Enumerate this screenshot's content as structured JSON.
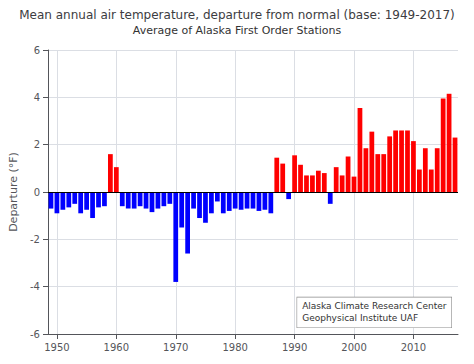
{
  "chart_data": {
    "type": "bar",
    "title": "Mean annual air temperature, departure from normal (base: 1949-2017)",
    "subtitle": "Average of Alaska First Order Stations",
    "ylabel": "Departure (°F)",
    "annotation": "Alaska Climate Research Center\nGeophysical Institute UAF",
    "x": [
      1949,
      1950,
      1951,
      1952,
      1953,
      1954,
      1955,
      1956,
      1957,
      1958,
      1959,
      1960,
      1961,
      1962,
      1963,
      1964,
      1965,
      1966,
      1967,
      1968,
      1969,
      1970,
      1971,
      1972,
      1973,
      1974,
      1975,
      1976,
      1977,
      1978,
      1979,
      1980,
      1981,
      1982,
      1983,
      1984,
      1985,
      1986,
      1987,
      1988,
      1989,
      1990,
      1991,
      1992,
      1993,
      1994,
      1995,
      1996,
      1997,
      1998,
      1999,
      2000,
      2001,
      2002,
      2003,
      2004,
      2005,
      2006,
      2007,
      2008,
      2009,
      2010,
      2011,
      2012,
      2013,
      2014,
      2015,
      2016,
      2017
    ],
    "values": [
      -0.7,
      -0.9,
      -0.75,
      -0.65,
      -0.5,
      -0.9,
      -0.75,
      -1.1,
      -0.65,
      -0.6,
      1.6,
      1.05,
      -0.6,
      -0.7,
      -0.7,
      -0.6,
      -0.7,
      -0.85,
      -0.7,
      -0.6,
      -0.5,
      -3.8,
      -1.5,
      -2.6,
      -0.7,
      -1.1,
      -1.3,
      -0.9,
      -0.4,
      -0.9,
      -0.8,
      -0.7,
      -0.75,
      -0.7,
      -0.7,
      -0.8,
      -0.75,
      -0.9,
      1.45,
      1.2,
      -0.3,
      1.55,
      1.15,
      0.7,
      0.7,
      0.9,
      0.8,
      -0.5,
      1.05,
      0.7,
      1.5,
      0.65,
      3.55,
      1.85,
      2.55,
      1.6,
      1.6,
      2.35,
      2.6,
      2.6,
      2.6,
      2.15,
      0.95,
      1.85,
      0.95,
      1.85,
      3.95,
      4.15,
      2.3
    ],
    "colors": [
      "#0000ff",
      "#0000ff",
      "#0000ff",
      "#0000ff",
      "#0000ff",
      "#0000ff",
      "#0000ff",
      "#0000ff",
      "#0000ff",
      "#0000ff",
      "#ff0000",
      "#ff0000",
      "#0000ff",
      "#0000ff",
      "#0000ff",
      "#0000ff",
      "#0000ff",
      "#0000ff",
      "#0000ff",
      "#0000ff",
      "#0000ff",
      "#0000ff",
      "#0000ff",
      "#0000ff",
      "#0000ff",
      "#0000ff",
      "#0000ff",
      "#0000ff",
      "#0000ff",
      "#0000ff",
      "#0000ff",
      "#0000ff",
      "#0000ff",
      "#0000ff",
      "#0000ff",
      "#0000ff",
      "#0000ff",
      "#0000ff",
      "#ff0000",
      "#ff0000",
      "#0000ff",
      "#ff0000",
      "#ff0000",
      "#ff0000",
      "#ff0000",
      "#ff0000",
      "#ff0000",
      "#0000ff",
      "#ff0000",
      "#ff0000",
      "#ff0000",
      "#ff0000",
      "#ff0000",
      "#ff0000",
      "#ff0000",
      "#ff0000",
      "#ff0000",
      "#ff0000",
      "#ff0000",
      "#ff0000",
      "#ff0000",
      "#ff0000",
      "#ff0000",
      "#ff0000",
      "#ff0000",
      "#ff0000",
      "#ff0000",
      "#ff0000",
      "#ff0000"
    ],
    "xlim": [
      1948.5,
      2017.5
    ],
    "xticks": [
      1950,
      1960,
      1970,
      1980,
      1990,
      2000,
      2010
    ],
    "ylim": [
      -6,
      6
    ],
    "yticks": [
      -6,
      -4,
      -2,
      0,
      2,
      4,
      6
    ],
    "grid": true
  }
}
